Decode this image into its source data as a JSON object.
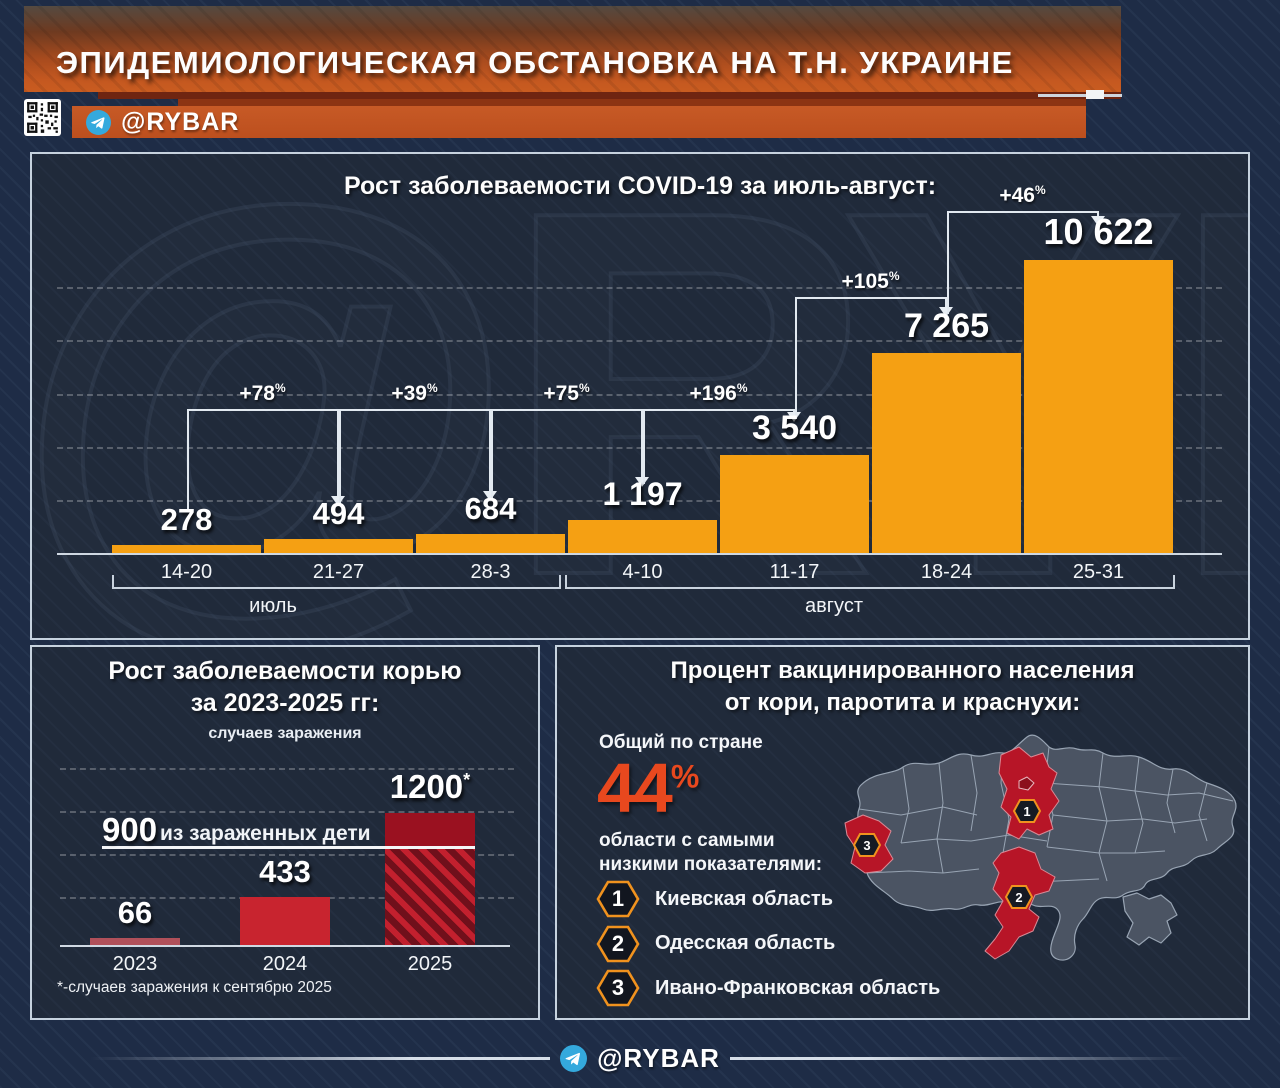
{
  "header": {
    "title": "ЭПИДЕМИОЛОГИЧЕСКАЯ ОБСТАНОВКА НА Т.Н. УКРАИНЕ",
    "channel": "@RYBAR"
  },
  "watermark": "@RYBAR",
  "chart_data": [
    {
      "id": "covid",
      "type": "bar",
      "title": "Рост заболеваемости COVID-19 за июль-август:",
      "categories": [
        "14-20",
        "21-27",
        "28-3",
        "4-10",
        "11-17",
        "18-24",
        "25-31"
      ],
      "values": [
        278,
        494,
        684,
        1197,
        3540,
        7265,
        10622
      ],
      "value_labels": [
        "278",
        "494",
        "684",
        "1 197",
        "3 540",
        "7 265",
        "10 622"
      ],
      "pct_changes": [
        "+78",
        "+39",
        "+75",
        "+196",
        "+105",
        "+46"
      ],
      "month_groups": [
        {
          "label": "июль"
        },
        {
          "label": "август"
        }
      ],
      "bar_color": "#f5a013",
      "ylim": [
        0,
        11000
      ],
      "grid": true,
      "legend_position": "none"
    },
    {
      "id": "measles",
      "type": "bar",
      "title_line1": "Рост заболеваемости корью",
      "title_line2": "за 2023-2025 гг:",
      "subtitle": "случаев заражения",
      "categories": [
        "2023",
        "2024",
        "2025"
      ],
      "values": [
        66,
        433,
        1200
      ],
      "value_labels": [
        "66",
        "433",
        "1200"
      ],
      "value_label_sups": [
        "",
        "",
        "*"
      ],
      "bar_colors": [
        "#b0505a",
        "#c8242f",
        "#9a1120"
      ],
      "hatch_colors": [
        "#c2202e",
        "#70101b"
      ],
      "reference_line": {
        "value": 900,
        "bold_label": "900",
        "label": "из зараженных дети"
      },
      "hatched_below_reference_on": "2025",
      "footnote": "*-случаев заражения к сентябрю 2025",
      "ylim": [
        0,
        1600
      ],
      "grid": true
    }
  ],
  "vaccination_panel": {
    "title_line1": "Процент вакцинированного населения",
    "title_line2": "от кори, паротита и краснухи:",
    "overall_label": "Общий по стране",
    "overall_value": "44",
    "overall_unit": "%",
    "lowest_line1": "области с самыми",
    "lowest_line2": "низкими показателями:",
    "regions": [
      {
        "num": "1",
        "name": "Киевская область"
      },
      {
        "num": "2",
        "name": "Одесская область"
      },
      {
        "num": "3",
        "name": "Ивано-Франковская область"
      }
    ],
    "map_colors": {
      "region_fill": "#4b5463",
      "region_stroke": "#98a4b3",
      "highlight_fill": "#b71527",
      "marker_border": "#f0921e"
    }
  },
  "footer": {
    "channel": "@RYBAR"
  },
  "colors": {
    "accent_orange": "#f5a013",
    "accent_red": "#e8481e",
    "panel_border": "#c6d2de",
    "telegram_blue": "#34a9dd"
  }
}
